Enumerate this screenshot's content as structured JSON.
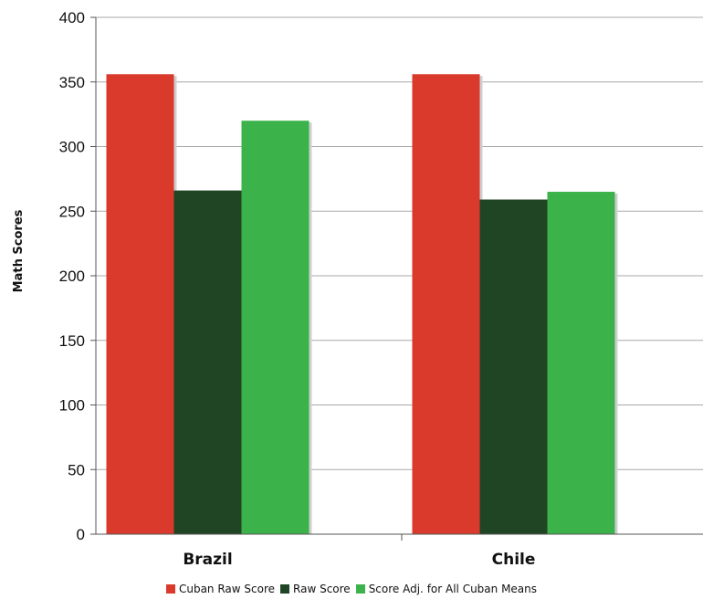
{
  "chart_data": {
    "type": "bar",
    "categories": [
      "Brazil",
      "Chile"
    ],
    "series": [
      {
        "name": "Cuban Raw Score",
        "values": [
          356,
          356
        ],
        "color": "#d93a2b"
      },
      {
        "name": "Raw Score",
        "values": [
          266,
          259
        ],
        "color": "#1f4524"
      },
      {
        "name": "Score Adj. for All Cuban Means",
        "values": [
          320,
          265
        ],
        "color": "#3bb34a"
      }
    ],
    "title": "",
    "xlabel": "",
    "ylabel": "Math Scores",
    "ylim": [
      0,
      400
    ],
    "yticks": [
      0,
      50,
      100,
      150,
      200,
      250,
      300,
      350,
      400
    ],
    "grid": true,
    "legend_position": "bottom"
  }
}
